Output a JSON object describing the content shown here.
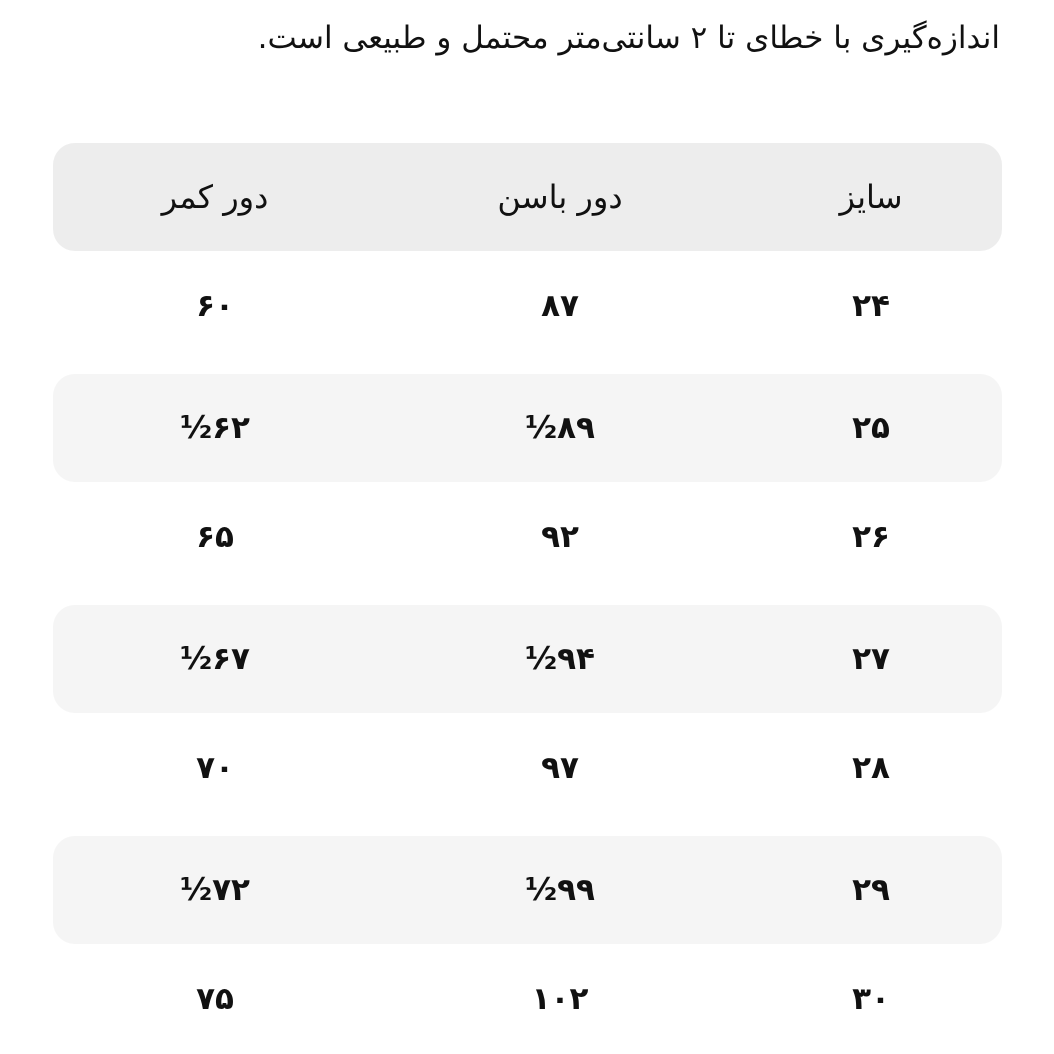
{
  "note": "اندازه‌گیری با خطای تا ۲ سانتی‌متر محتمل و طبیعی است.",
  "table": {
    "headers": [
      "سایز",
      "دور باسن",
      "دور کمر"
    ],
    "rows": [
      [
        "۲۴",
        "۸۷",
        "۶۰"
      ],
      [
        "۲۵",
        "۸۹½",
        "۶۲½"
      ],
      [
        "۲۶",
        "۹۲",
        "۶۵"
      ],
      [
        "۲۷",
        "۹۴½",
        "۶۷½"
      ],
      [
        "۲۸",
        "۹۷",
        "۷۰"
      ],
      [
        "۲۹",
        "۹۹½",
        "۷۲½"
      ],
      [
        "۳۰",
        "۱۰۲",
        "۷۵"
      ]
    ]
  },
  "colors": {
    "header_bg": "#ededed",
    "stripe_bg": "#f5f5f5",
    "text": "#111111"
  }
}
